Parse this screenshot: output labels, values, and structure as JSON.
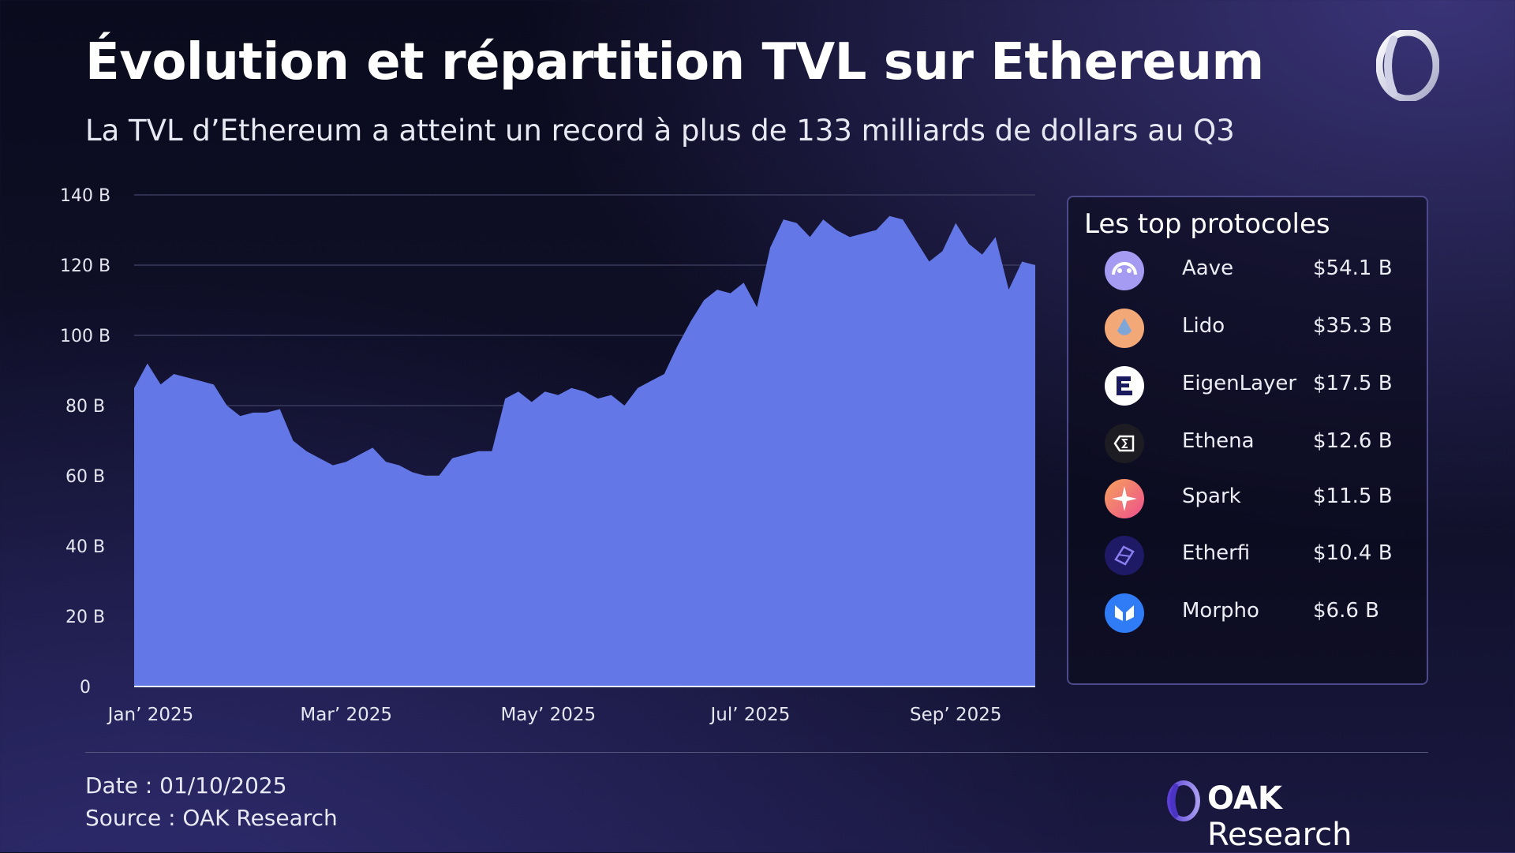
{
  "header": {
    "title": "Évolution et répartition TVL sur Ethereum",
    "subtitle": "La TVL d’Ethereum a atteint un record à plus de 133 milliards de dollars au Q3"
  },
  "chart_data": {
    "type": "area",
    "title": "Évolution et répartition TVL sur Ethereum",
    "y_ticks": [
      "0",
      "20 B",
      "40 B",
      "60 B",
      "80 B",
      "100 B",
      "120 B",
      "140 B"
    ],
    "x_ticks": [
      "Jan’ 2025",
      "Mar’ 2025",
      "May’ 2025",
      "Jul’ 2025",
      "Sep’ 2025"
    ],
    "x_tick_dates": [
      "2025-01-06",
      "2025-03-06",
      "2025-05-06",
      "2025-07-06",
      "2025-09-06"
    ],
    "ylim": [
      0,
      140
    ],
    "grid": true,
    "color": "#6378e6",
    "series": [
      {
        "x": [
          "2025-01-01",
          "2025-01-05",
          "2025-01-09",
          "2025-01-13",
          "2025-01-17",
          "2025-01-21",
          "2025-01-25",
          "2025-01-29",
          "2025-02-02",
          "2025-02-06",
          "2025-02-10",
          "2025-02-14",
          "2025-02-18",
          "2025-02-22",
          "2025-02-26",
          "2025-03-02",
          "2025-03-06",
          "2025-03-10",
          "2025-03-14",
          "2025-03-18",
          "2025-03-22",
          "2025-03-26",
          "2025-03-30",
          "2025-04-03",
          "2025-04-07",
          "2025-04-11",
          "2025-04-15",
          "2025-04-19",
          "2025-04-23",
          "2025-04-27",
          "2025-05-01",
          "2025-05-05",
          "2025-05-09",
          "2025-05-13",
          "2025-05-17",
          "2025-05-21",
          "2025-05-25",
          "2025-05-29",
          "2025-06-02",
          "2025-06-06",
          "2025-06-10",
          "2025-06-14",
          "2025-06-18",
          "2025-06-22",
          "2025-06-26",
          "2025-06-30",
          "2025-07-04",
          "2025-07-08",
          "2025-07-12",
          "2025-07-16",
          "2025-07-20",
          "2025-07-24",
          "2025-07-28",
          "2025-08-01",
          "2025-08-05",
          "2025-08-09",
          "2025-08-13",
          "2025-08-17",
          "2025-08-21",
          "2025-08-25",
          "2025-08-29",
          "2025-09-02",
          "2025-09-06",
          "2025-09-10",
          "2025-09-14",
          "2025-09-18",
          "2025-09-22",
          "2025-09-26",
          "2025-09-30"
        ],
        "values": [
          85,
          92,
          86,
          89,
          88,
          87,
          86,
          80,
          77,
          78,
          78,
          79,
          70,
          67,
          65,
          63,
          64,
          66,
          68,
          64,
          63,
          61,
          60,
          60,
          65,
          66,
          67,
          67,
          82,
          84,
          81,
          84,
          83,
          85,
          84,
          82,
          83,
          80,
          85,
          87,
          89,
          97,
          104,
          110,
          113,
          112,
          115,
          108,
          125,
          133,
          132,
          128,
          133,
          130,
          128,
          129,
          130,
          134,
          133,
          127,
          121,
          124,
          132,
          126,
          123,
          128,
          113,
          121,
          120
        ]
      }
    ]
  },
  "panel": {
    "title": "Les top protocoles",
    "protocols": [
      {
        "name": "Aave",
        "value": "$54.1 B",
        "icon": "aave-icon"
      },
      {
        "name": "Lido",
        "value": "$35.3 B",
        "icon": "lido-icon"
      },
      {
        "name": "EigenLayer",
        "value": "$17.5 B",
        "icon": "eigenlayer-icon"
      },
      {
        "name": "Ethena",
        "value": "$12.6 B",
        "icon": "ethena-icon"
      },
      {
        "name": "Spark",
        "value": "$11.5 B",
        "icon": "spark-icon"
      },
      {
        "name": "Etherfi",
        "value": "$10.4 B",
        "icon": "etherfi-icon"
      },
      {
        "name": "Morpho",
        "value": "$6.6 B",
        "icon": "morpho-icon"
      }
    ]
  },
  "footer": {
    "date": "Date : 01/10/2025",
    "source": "Source : OAK Research",
    "brand_bold": "OAK",
    "brand_light": "Research"
  }
}
